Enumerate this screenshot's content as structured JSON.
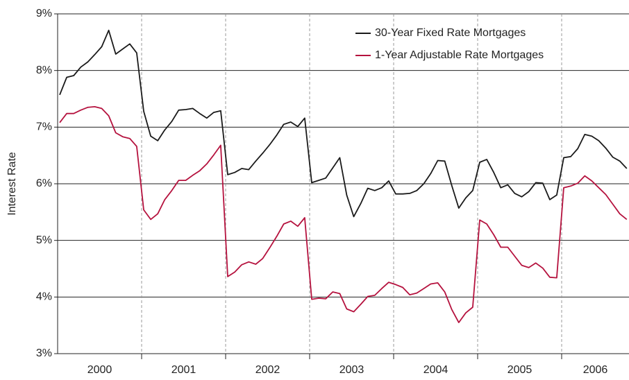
{
  "chart_data": {
    "type": "line",
    "y_label": "Interest Rate",
    "x_labels": [
      "2000",
      "2001",
      "2002",
      "2003",
      "2004",
      "2005",
      "2006"
    ],
    "ylim": [
      3,
      9
    ],
    "yticks": [
      {
        "value": 3,
        "label": "3%"
      },
      {
        "value": 4,
        "label": "4%"
      },
      {
        "value": 5,
        "label": "5%"
      },
      {
        "value": 6,
        "label": "6%"
      },
      {
        "value": 7,
        "label": "7%"
      },
      {
        "value": 8,
        "label": "8%"
      },
      {
        "value": 9,
        "label": "9%"
      }
    ],
    "grid": true,
    "legend": "upper right",
    "series": [
      {
        "name": "30-Year Fixed Rate Mortgages",
        "color": "#1a1a1a",
        "values": [
          7.57,
          7.88,
          7.91,
          8.06,
          8.15,
          8.28,
          8.42,
          8.71,
          8.29,
          8.38,
          8.47,
          8.31,
          7.28,
          6.84,
          6.76,
          6.95,
          7.1,
          7.3,
          7.31,
          7.33,
          7.24,
          7.16,
          7.26,
          7.29,
          6.16,
          6.2,
          6.27,
          6.25,
          6.4,
          6.54,
          6.69,
          6.86,
          7.05,
          7.09,
          7.01,
          7.16,
          6.02,
          6.06,
          6.1,
          6.28,
          6.46,
          5.8,
          5.42,
          5.65,
          5.92,
          5.88,
          5.93,
          6.05,
          5.82,
          5.82,
          5.83,
          5.88,
          6.0,
          6.18,
          6.41,
          6.4,
          5.97,
          5.57,
          5.75,
          5.88,
          6.38,
          6.43,
          6.2,
          5.93,
          5.98,
          5.83,
          5.77,
          5.86,
          6.02,
          6.01,
          5.72,
          5.8,
          6.46,
          6.48,
          6.62,
          6.87,
          6.84,
          6.76,
          6.63,
          6.47,
          6.4,
          6.27
        ]
      },
      {
        "name": "1-Year Adjustable Rate Mortgages",
        "color": "#b5123e",
        "values": [
          7.08,
          7.24,
          7.24,
          7.3,
          7.35,
          7.36,
          7.33,
          7.2,
          6.9,
          6.83,
          6.8,
          6.66,
          5.54,
          5.37,
          5.47,
          5.72,
          5.88,
          6.06,
          6.06,
          6.15,
          6.23,
          6.35,
          6.51,
          6.68,
          4.36,
          4.44,
          4.57,
          4.62,
          4.58,
          4.68,
          4.87,
          5.07,
          5.29,
          5.34,
          5.25,
          5.4,
          3.96,
          3.98,
          3.97,
          4.09,
          4.06,
          3.79,
          3.74,
          3.87,
          4.01,
          4.03,
          4.15,
          4.26,
          4.22,
          4.17,
          4.04,
          4.07,
          4.15,
          4.23,
          4.25,
          4.09,
          3.78,
          3.55,
          3.72,
          3.82,
          5.36,
          5.29,
          5.1,
          4.88,
          4.88,
          4.72,
          4.56,
          4.52,
          4.6,
          4.51,
          4.35,
          4.34,
          5.93,
          5.96,
          6.01,
          6.14,
          6.05,
          5.93,
          5.81,
          5.64,
          5.47,
          5.37
        ]
      }
    ]
  }
}
